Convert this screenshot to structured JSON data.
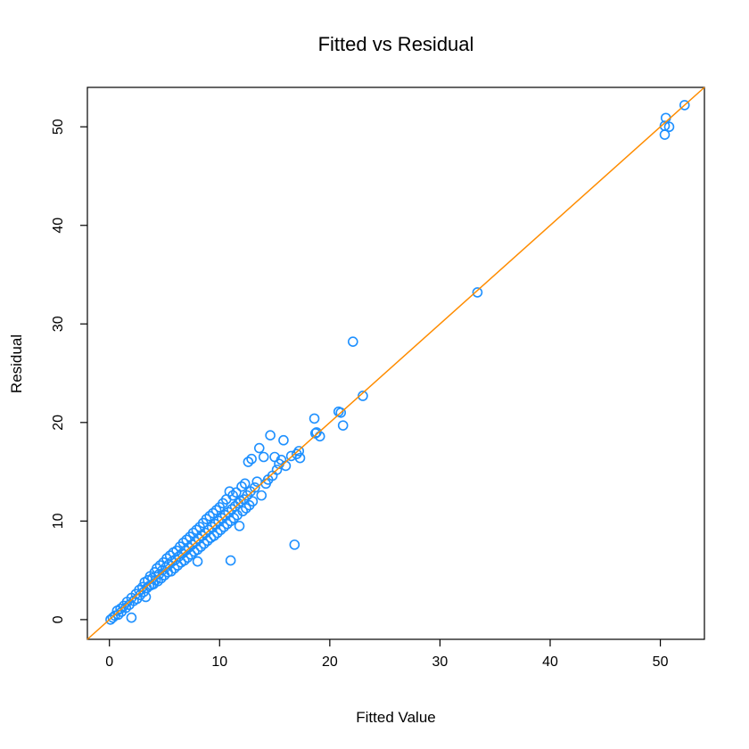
{
  "chart_data": {
    "type": "scatter",
    "title": "Fitted vs Residual",
    "xlabel": "Fitted Value",
    "ylabel": "Residual",
    "xlim": [
      -2,
      54
    ],
    "ylim": [
      -2,
      54
    ],
    "xticks": [
      0,
      10,
      20,
      30,
      40,
      50
    ],
    "yticks": [
      0,
      10,
      20,
      30,
      40,
      50
    ],
    "grid": false,
    "point_color": "#1E90FF",
    "line_color": "#FF8C00",
    "reference_line": {
      "intercept": 0,
      "slope": 1
    },
    "series": [
      {
        "points": [
          [
            0.1,
            0.0
          ],
          [
            0.3,
            0.2
          ],
          [
            0.5,
            0.4
          ],
          [
            0.7,
            0.9
          ],
          [
            0.8,
            0.5
          ],
          [
            1.0,
            1.1
          ],
          [
            1.1,
            0.8
          ],
          [
            1.3,
            1.4
          ],
          [
            1.5,
            1.2
          ],
          [
            1.6,
            1.8
          ],
          [
            1.8,
            1.5
          ],
          [
            2.0,
            0.2
          ],
          [
            2.0,
            2.2
          ],
          [
            2.2,
            1.9
          ],
          [
            2.4,
            2.6
          ],
          [
            2.5,
            2.1
          ],
          [
            2.7,
            3.0
          ],
          [
            2.8,
            2.5
          ],
          [
            3.0,
            3.3
          ],
          [
            3.1,
            2.8
          ],
          [
            3.2,
            3.8
          ],
          [
            3.3,
            2.3
          ],
          [
            3.4,
            3.2
          ],
          [
            3.5,
            4.0
          ],
          [
            3.6,
            3.4
          ],
          [
            3.7,
            4.4
          ],
          [
            3.8,
            3.5
          ],
          [
            3.9,
            4.2
          ],
          [
            4.0,
            3.6
          ],
          [
            4.1,
            4.8
          ],
          [
            4.2,
            4.0
          ],
          [
            4.3,
            5.2
          ],
          [
            4.4,
            3.9
          ],
          [
            4.5,
            4.6
          ],
          [
            4.6,
            5.5
          ],
          [
            4.7,
            4.2
          ],
          [
            4.8,
            5.0
          ],
          [
            4.9,
            5.8
          ],
          [
            5.0,
            4.5
          ],
          [
            5.1,
            5.3
          ],
          [
            5.2,
            6.2
          ],
          [
            5.3,
            4.8
          ],
          [
            5.4,
            5.6
          ],
          [
            5.5,
            6.5
          ],
          [
            5.6,
            4.9
          ],
          [
            5.7,
            5.9
          ],
          [
            5.8,
            6.8
          ],
          [
            5.9,
            5.2
          ],
          [
            6.0,
            6.1
          ],
          [
            6.1,
            7.0
          ],
          [
            6.2,
            5.5
          ],
          [
            6.3,
            6.4
          ],
          [
            6.4,
            7.4
          ],
          [
            6.5,
            5.8
          ],
          [
            6.6,
            6.7
          ],
          [
            6.7,
            7.8
          ],
          [
            6.8,
            6.0
          ],
          [
            6.9,
            7.0
          ],
          [
            7.0,
            8.1
          ],
          [
            7.1,
            6.3
          ],
          [
            7.2,
            7.3
          ],
          [
            7.3,
            8.4
          ],
          [
            7.4,
            6.6
          ],
          [
            7.5,
            7.6
          ],
          [
            7.6,
            8.8
          ],
          [
            7.7,
            6.9
          ],
          [
            7.8,
            7.9
          ],
          [
            7.9,
            9.1
          ],
          [
            8.0,
            7.1
          ],
          [
            8.0,
            5.9
          ],
          [
            8.1,
            8.2
          ],
          [
            8.2,
            9.4
          ],
          [
            8.3,
            7.4
          ],
          [
            8.4,
            8.5
          ],
          [
            8.5,
            9.8
          ],
          [
            8.6,
            7.7
          ],
          [
            8.7,
            8.8
          ],
          [
            8.8,
            10.2
          ],
          [
            8.9,
            8.0
          ],
          [
            9.0,
            9.1
          ],
          [
            9.1,
            10.5
          ],
          [
            9.2,
            8.3
          ],
          [
            9.3,
            9.4
          ],
          [
            9.4,
            10.8
          ],
          [
            9.5,
            8.5
          ],
          [
            9.6,
            9.7
          ],
          [
            9.7,
            11.1
          ],
          [
            9.8,
            8.8
          ],
          [
            9.9,
            10.0
          ],
          [
            10.0,
            11.4
          ],
          [
            10.1,
            9.1
          ],
          [
            10.2,
            10.3
          ],
          [
            10.3,
            11.8
          ],
          [
            10.4,
            9.4
          ],
          [
            10.5,
            10.6
          ],
          [
            10.6,
            12.2
          ],
          [
            10.7,
            9.7
          ],
          [
            10.8,
            10.9
          ],
          [
            10.9,
            13.0
          ],
          [
            11.0,
            6.0
          ],
          [
            11.0,
            10.0
          ],
          [
            11.1,
            11.2
          ],
          [
            11.2,
            12.6
          ],
          [
            11.3,
            10.3
          ],
          [
            11.4,
            11.5
          ],
          [
            11.5,
            12.9
          ],
          [
            11.6,
            10.6
          ],
          [
            11.7,
            11.8
          ],
          [
            11.8,
            9.5
          ],
          [
            11.9,
            12.0
          ],
          [
            12.0,
            13.5
          ],
          [
            12.1,
            11.0
          ],
          [
            12.2,
            12.2
          ],
          [
            12.3,
            13.8
          ],
          [
            12.4,
            11.3
          ],
          [
            12.5,
            12.6
          ],
          [
            12.6,
            16.0
          ],
          [
            12.7,
            11.6
          ],
          [
            12.8,
            13.0
          ],
          [
            12.9,
            16.3
          ],
          [
            13.0,
            12.0
          ],
          [
            13.2,
            13.4
          ],
          [
            13.4,
            14.0
          ],
          [
            13.6,
            17.4
          ],
          [
            13.8,
            12.6
          ],
          [
            14.0,
            16.5
          ],
          [
            14.2,
            13.8
          ],
          [
            14.4,
            14.2
          ],
          [
            14.6,
            18.7
          ],
          [
            14.8,
            14.6
          ],
          [
            15.0,
            16.5
          ],
          [
            15.2,
            15.2
          ],
          [
            15.4,
            15.8
          ],
          [
            15.6,
            16.2
          ],
          [
            15.8,
            18.2
          ],
          [
            16.0,
            15.6
          ],
          [
            16.5,
            16.6
          ],
          [
            16.8,
            7.6
          ],
          [
            17.0,
            16.8
          ],
          [
            17.2,
            17.1
          ],
          [
            17.3,
            16.4
          ],
          [
            18.6,
            20.4
          ],
          [
            18.7,
            18.9
          ],
          [
            18.8,
            19.0
          ],
          [
            19.1,
            18.6
          ],
          [
            20.8,
            21.1
          ],
          [
            21.0,
            21.0
          ],
          [
            21.2,
            19.7
          ],
          [
            22.1,
            28.2
          ],
          [
            23.0,
            22.7
          ],
          [
            33.4,
            33.2
          ],
          [
            50.4,
            49.2
          ],
          [
            50.4,
            50.1
          ],
          [
            50.5,
            50.9
          ],
          [
            50.8,
            50.0
          ],
          [
            52.2,
            52.2
          ]
        ]
      }
    ]
  }
}
